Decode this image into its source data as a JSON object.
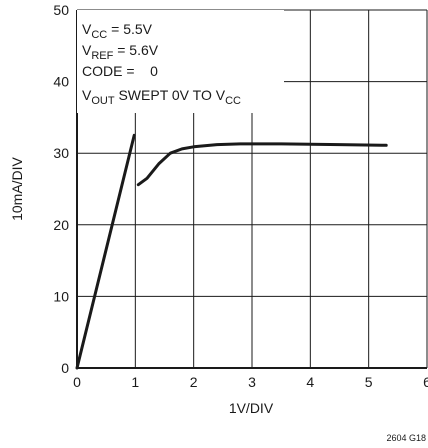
{
  "chart_data": {
    "type": "line",
    "xlabel": "1V/DIV",
    "ylabel": "10mA/DIV",
    "xlim": [
      0,
      6
    ],
    "ylim": [
      0,
      50
    ],
    "x_ticks": [
      "0",
      "1",
      "2",
      "3",
      "4",
      "5",
      "6"
    ],
    "y_ticks": [
      "0",
      "10",
      "20",
      "30",
      "40",
      "50"
    ],
    "grid": true,
    "series": [
      {
        "color": "#1a1a1a",
        "segments": [
          [
            [
              0.0,
              0.0
            ],
            [
              0.98,
              32.5
            ]
          ],
          [
            [
              1.05,
              25.6
            ],
            [
              1.2,
              26.5
            ],
            [
              1.4,
              28.5
            ],
            [
              1.6,
              30.0
            ],
            [
              1.8,
              30.6
            ],
            [
              2.0,
              30.9
            ],
            [
              2.4,
              31.2
            ],
            [
              2.8,
              31.3
            ],
            [
              3.5,
              31.3
            ],
            [
              4.5,
              31.2
            ],
            [
              5.3,
              31.1
            ]
          ]
        ]
      }
    ],
    "annotation": {
      "vcc": {
        "main": "V",
        "sub": "CC",
        "rest": " = 5.5V"
      },
      "vref": {
        "main": "V",
        "sub": "REF",
        "rest": " = 5.6V"
      },
      "code": "CODE =    0",
      "vout": {
        "main": "V",
        "sub": "OUT",
        "rest": " SWEPT 0V TO V",
        "tail_sub": "CC"
      }
    },
    "figure_id": "2604 G18"
  }
}
